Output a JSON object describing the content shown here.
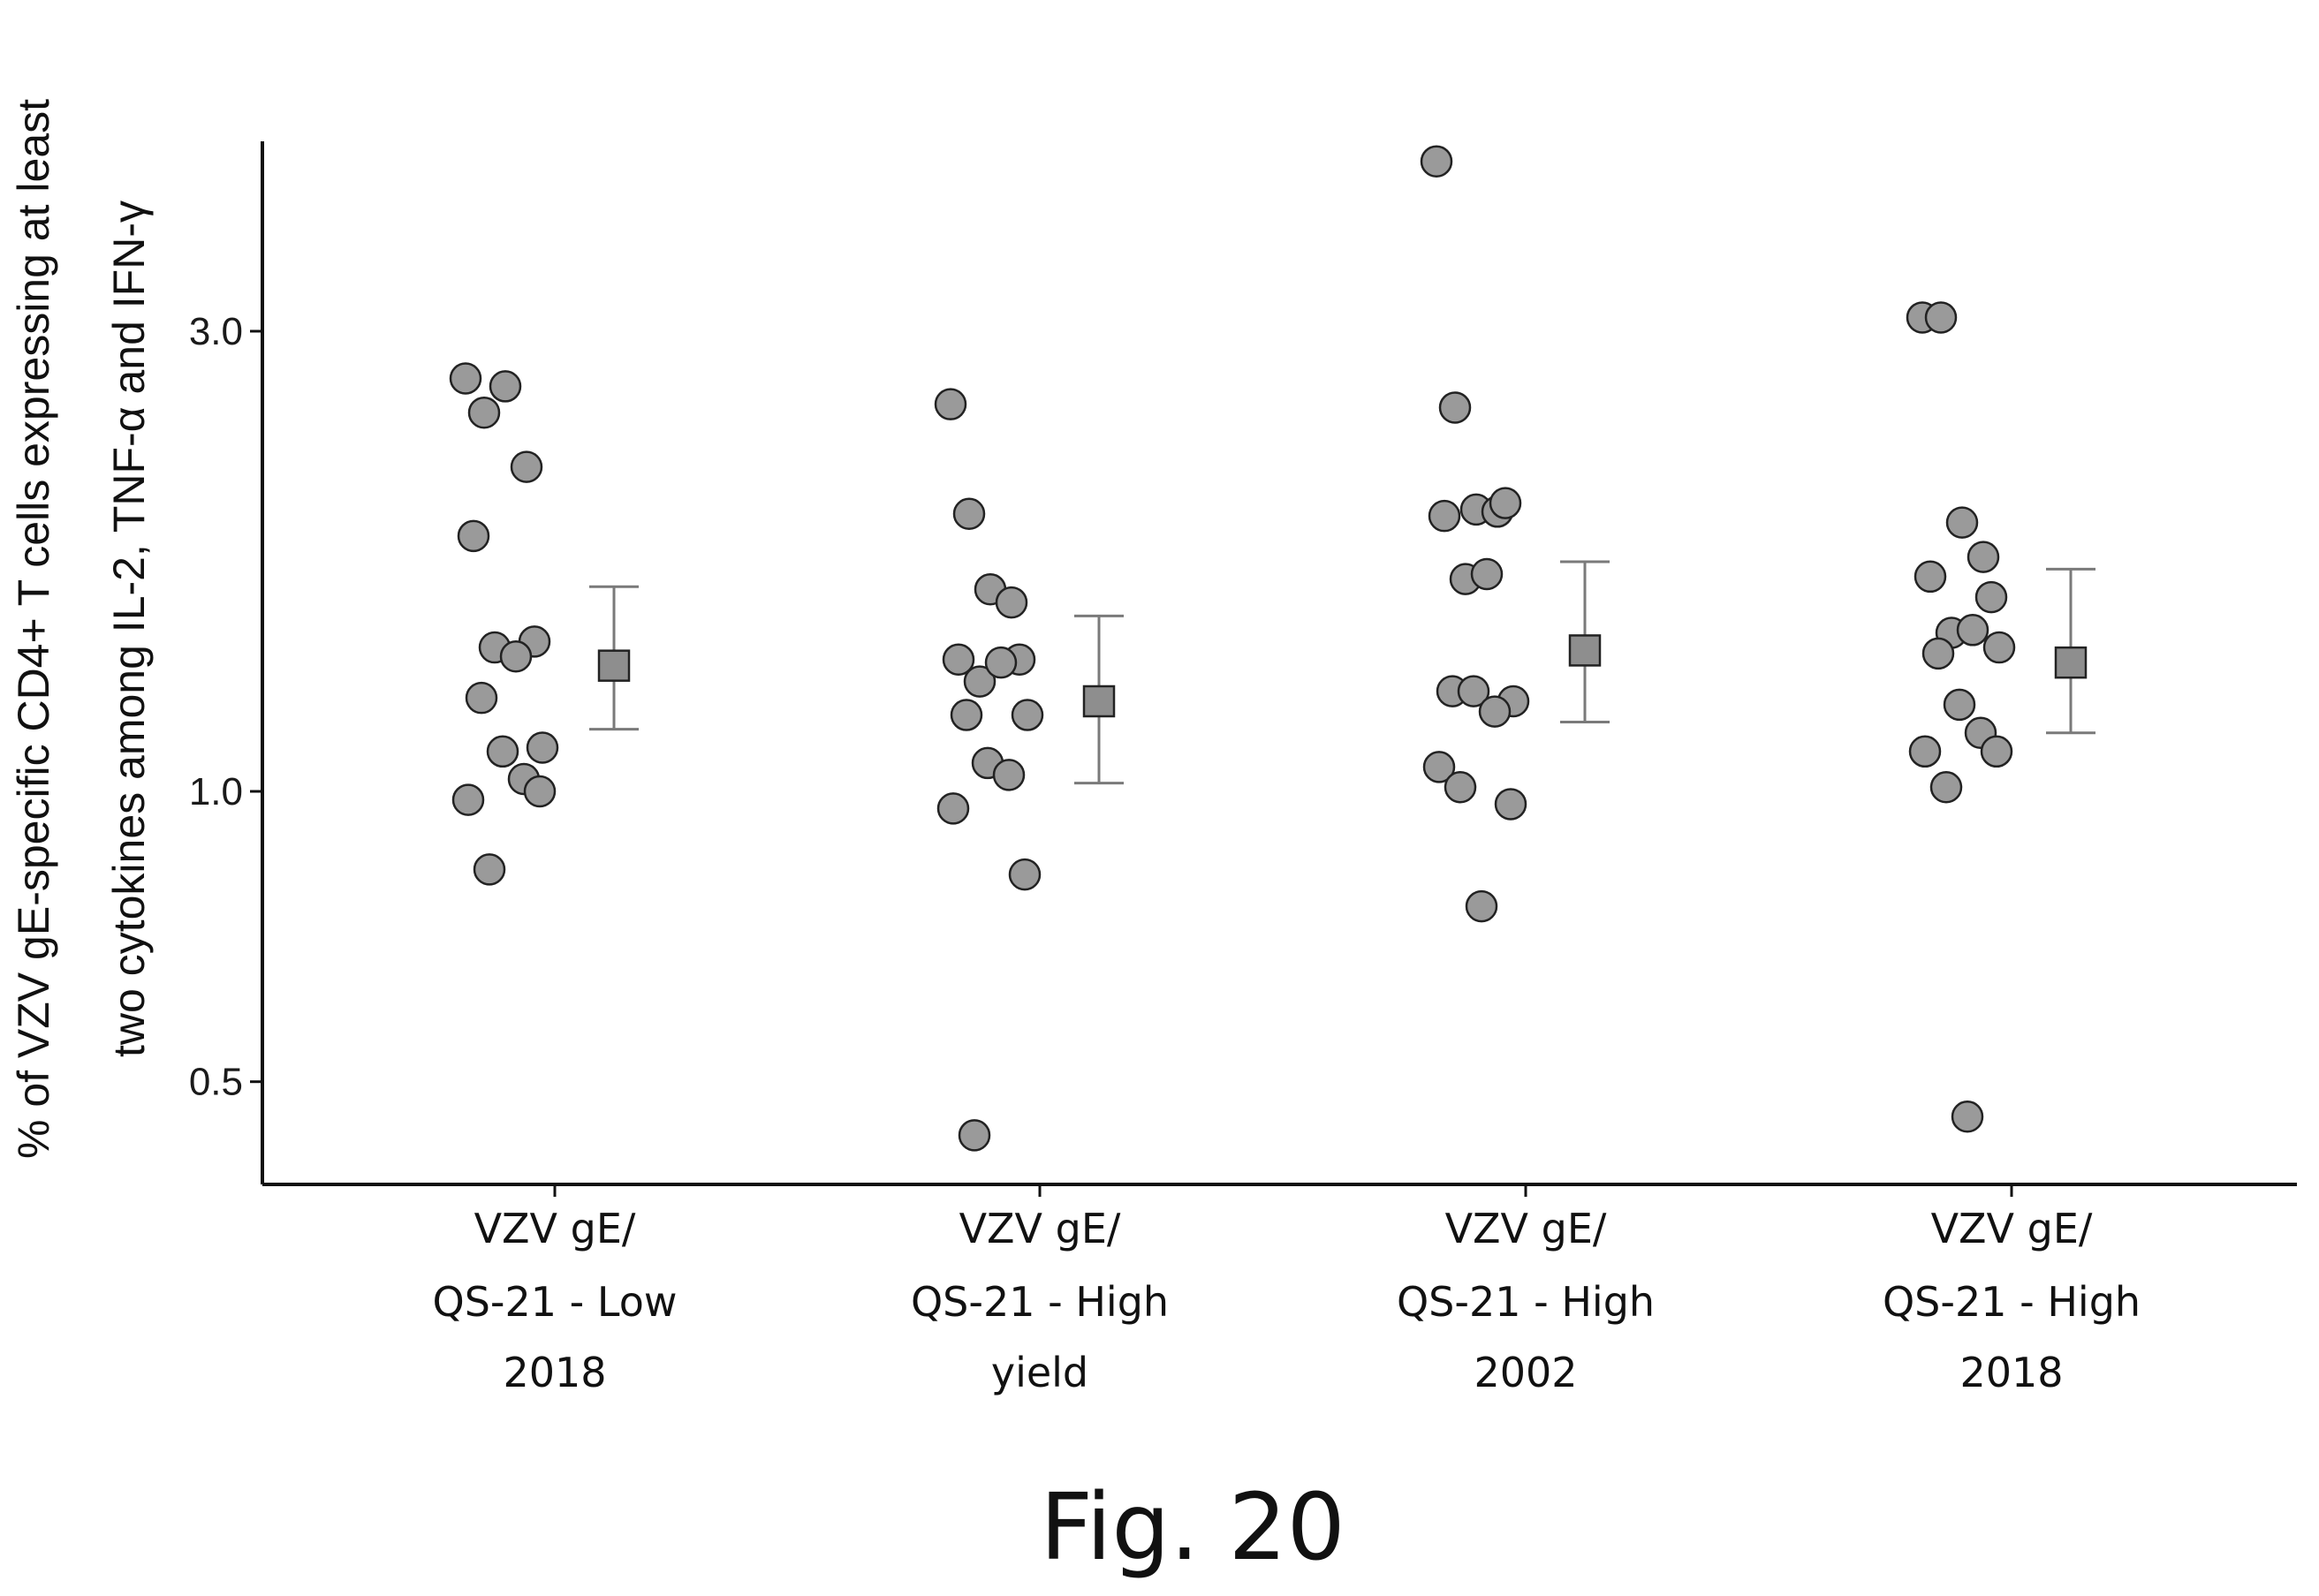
{
  "figure_caption": "Fig. 20",
  "colors": {
    "point_fill": "#9a9a9a",
    "point_stroke": "#222222",
    "summary_fill": "#8e8e8e",
    "errorbar": "#7a7a7a",
    "axis": "#111111"
  },
  "chart_data": {
    "type": "scatter",
    "y_scale": "log",
    "ylabel_lines": [
      "% of VZV gE-specific CD4+ T cells expressing at least",
      "two cytokines among IL-2, TNF-α and IFN-γ"
    ],
    "yticks": [
      0.5,
      1.0,
      3.0
    ],
    "ytick_labels": [
      "0.5",
      "1.0",
      "3.0"
    ],
    "ylim": [
      0.4,
      4.6
    ],
    "grid": false,
    "groups": [
      {
        "label_lines": [
          "VZV gE/",
          "QS-21 - Low",
          "2018"
        ],
        "points": [
          2.68,
          2.47,
          2.63,
          2.17,
          1.84,
          1.43,
          1.41,
          1.38,
          1.25,
          1.11,
          1.1,
          1.03,
          0.98,
          1.0,
          0.83
        ],
        "summary": {
          "value": 1.35,
          "lower": 1.16,
          "upper": 1.63
        }
      },
      {
        "label_lines": [
          "VZV gE/",
          "QS-21 - High",
          "yield"
        ],
        "points": [
          2.52,
          1.94,
          1.62,
          1.57,
          1.37,
          1.37,
          1.3,
          1.36,
          1.2,
          1.2,
          1.07,
          1.04,
          0.96,
          0.82,
          0.44
        ],
        "summary": {
          "value": 1.24,
          "lower": 1.02,
          "upper": 1.52
        }
      },
      {
        "label_lines": [
          "VZV gE/",
          "QS-21 - High",
          "2002"
        ],
        "points": [
          4.5,
          2.5,
          1.96,
          1.95,
          1.93,
          1.99,
          1.66,
          1.68,
          1.27,
          1.24,
          1.27,
          1.21,
          1.06,
          0.97,
          1.01,
          0.76
        ],
        "summary": {
          "value": 1.4,
          "lower": 1.18,
          "upper": 1.73
        }
      },
      {
        "label_lines": [
          "VZV gE/",
          "QS-21 - High",
          "2018"
        ],
        "points": [
          3.1,
          3.1,
          1.9,
          1.75,
          1.67,
          1.59,
          1.46,
          1.47,
          1.39,
          1.41,
          1.23,
          1.15,
          1.1,
          1.1,
          1.01,
          0.46
        ],
        "summary": {
          "value": 1.36,
          "lower": 1.15,
          "upper": 1.7
        }
      }
    ]
  }
}
